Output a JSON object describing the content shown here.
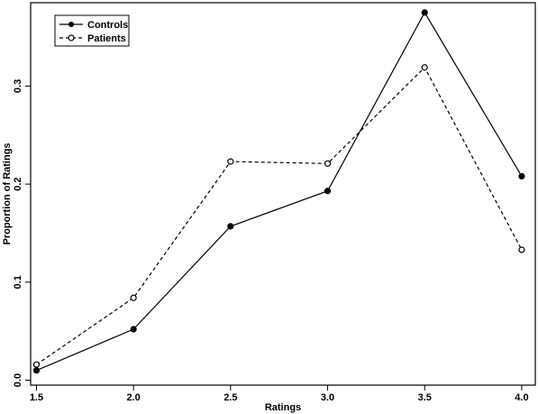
{
  "chart_data": {
    "type": "line",
    "xlabel": "Ratings",
    "ylabel": "Proportion of Ratings",
    "x": [
      1.5,
      2.0,
      2.5,
      3.0,
      3.5,
      4.0
    ],
    "x_tick_labels": [
      "1.5",
      "2.0",
      "2.5",
      "3.0",
      "3.5",
      "4.0"
    ],
    "y_ticks": [
      0.0,
      0.1,
      0.2,
      0.3
    ],
    "y_tick_labels": [
      "0.0",
      "0.1",
      "0.2",
      "0.3"
    ],
    "xlim": [
      1.47,
      4.07
    ],
    "ylim": [
      -0.005,
      0.385
    ],
    "grid": false,
    "legend_position": "top-left",
    "series": [
      {
        "name": "Controls",
        "style": "solid",
        "marker": "filled-circle",
        "values": [
          0.01,
          0.052,
          0.157,
          0.193,
          0.375,
          0.208
        ]
      },
      {
        "name": "Patients",
        "style": "dashed",
        "marker": "open-circle",
        "values": [
          0.016,
          0.084,
          0.223,
          0.221,
          0.319,
          0.133
        ]
      }
    ]
  },
  "colors": {
    "line": "#000000",
    "background": "#ffffff"
  }
}
